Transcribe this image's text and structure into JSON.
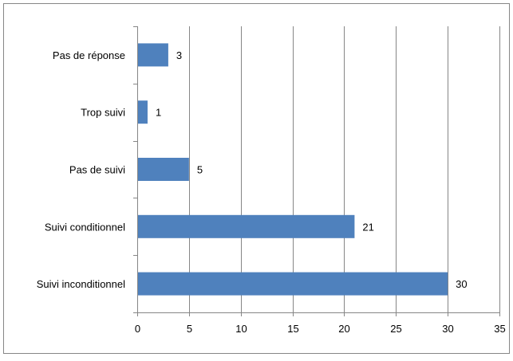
{
  "chart_data": {
    "type": "bar",
    "orientation": "horizontal",
    "title": "",
    "xlabel": "",
    "ylabel": "",
    "categories": [
      "Suivi inconditionnel",
      "Suivi conditionnel",
      "Pas de suivi",
      "Trop suivi",
      "Pas de réponse"
    ],
    "values": [
      30,
      21,
      5,
      1,
      3
    ],
    "xlim": [
      0,
      35
    ],
    "x_ticks": [
      0,
      5,
      10,
      15,
      20,
      25,
      30,
      35
    ],
    "grid": "vertical",
    "legend": "none",
    "data_labels": true,
    "colors": {
      "bar": "#4f81bd",
      "gridline": "#868686",
      "axis": "#868686",
      "border": "#868686"
    }
  }
}
